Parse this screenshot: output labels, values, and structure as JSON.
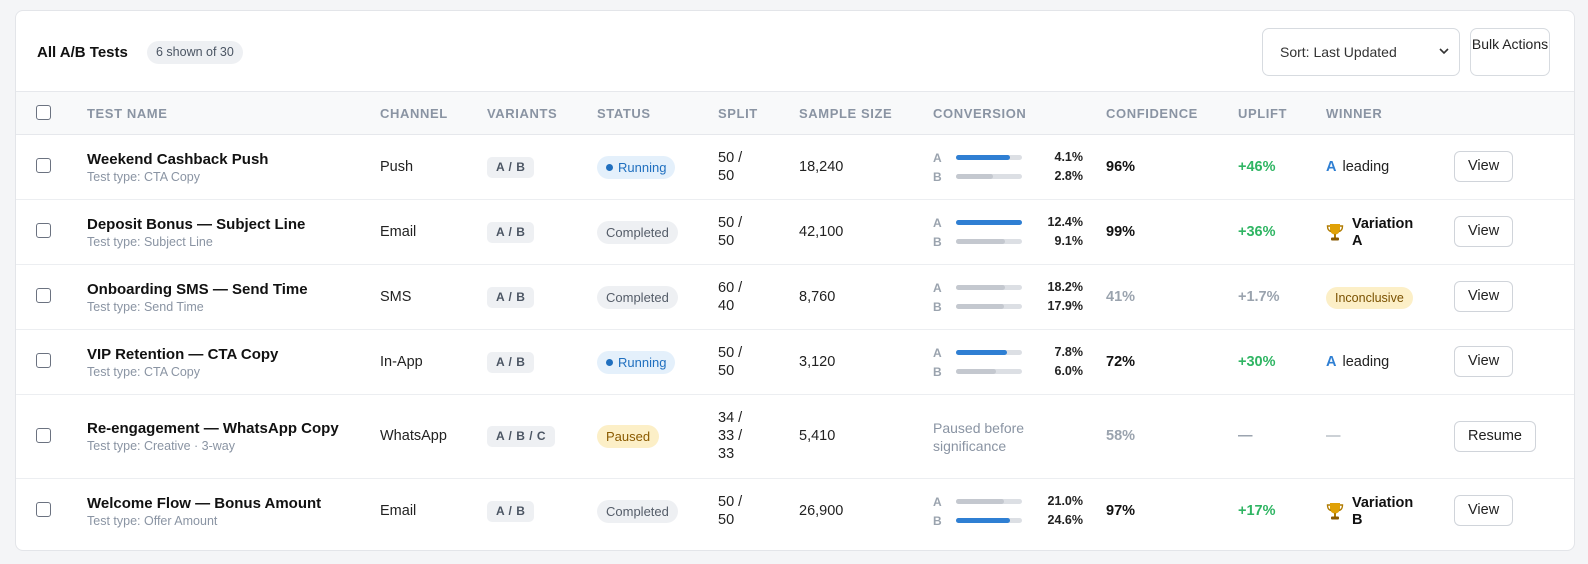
{
  "toolbar": {
    "title": "All A/B Tests",
    "count": "6 shown of 30",
    "sort": "Sort: Last Updated",
    "bulk_actions": "Bulk Actions"
  },
  "columns": [
    "TEST NAME",
    "CHANNEL",
    "VARIANTS",
    "STATUS",
    "SPLIT",
    "SAMPLE SIZE",
    "CONVERSION",
    "CONFIDENCE",
    "UPLIFT",
    "WINNER"
  ],
  "colors": {
    "accent_blue": "#2f7fd3",
    "uplift_green": "#2fb563",
    "paused_bg": "#fcefc7",
    "running_bg": "#e4f0fb"
  },
  "rows": [
    {
      "name": "Weekend Cashback Push",
      "type": "Test type: CTA Copy",
      "channel": "Push",
      "variants": "A / B",
      "status": "Running",
      "split": [
        "50 /",
        "50"
      ],
      "sample": "18,240",
      "conversion": [
        {
          "label": "A",
          "value": "4.1%",
          "fill": 0.82,
          "color": "blue"
        },
        {
          "label": "B",
          "value": "2.8%",
          "fill": 0.56,
          "color": "gray"
        }
      ],
      "confidence": "96%",
      "uplift": "+46%",
      "winner_mark": "A",
      "winner": "leading",
      "action": "View"
    },
    {
      "name": "Deposit Bonus — Subject Line",
      "type": "Test type: Subject Line",
      "channel": "Email",
      "variants": "A / B",
      "status": "Completed",
      "split": [
        "50 /",
        "50"
      ],
      "sample": "42,100",
      "conversion": [
        {
          "label": "A",
          "value": "12.4%",
          "fill": 1.0,
          "color": "blue"
        },
        {
          "label": "B",
          "value": "9.1%",
          "fill": 0.74,
          "color": "gray"
        }
      ],
      "confidence": "99%",
      "uplift": "+36%",
      "winner_icon": "trophy-icon",
      "winner_lines": [
        "Variation",
        "A"
      ],
      "action": "View"
    },
    {
      "name": "Onboarding SMS — Send Time",
      "type": "Test type: Send Time",
      "channel": "SMS",
      "variants": "A / B",
      "status": "Completed",
      "split": [
        "60 /",
        "40"
      ],
      "sample": "8,760",
      "conversion": [
        {
          "label": "A",
          "value": "18.2%",
          "fill": 0.74,
          "color": "gray"
        },
        {
          "label": "B",
          "value": "17.9%",
          "fill": 0.73,
          "color": "gray"
        }
      ],
      "confidence": "41%",
      "uplift": "+1.7%",
      "winner_badge": "Inconclusive",
      "action": "View"
    },
    {
      "name": "VIP Retention — CTA Copy",
      "type": "Test type: CTA Copy",
      "channel": "In-App",
      "variants": "A / B",
      "status": "Running",
      "split": [
        "50 /",
        "50"
      ],
      "sample": "3,120",
      "conversion": [
        {
          "label": "A",
          "value": "7.8%",
          "fill": 0.78,
          "color": "blue"
        },
        {
          "label": "B",
          "value": "6.0%",
          "fill": 0.6,
          "color": "gray"
        }
      ],
      "confidence": "72%",
      "uplift": "+30%",
      "winner_mark": "A",
      "winner": "leading",
      "action": "View"
    },
    {
      "name": "Re-engagement — WhatsApp Copy",
      "type": "Test type: Creative · 3-way",
      "channel": "WhatsApp",
      "variants": "A / B / C",
      "status": "Paused",
      "split": [
        "34 /",
        "33 /",
        "33"
      ],
      "sample": "5,410",
      "conversion_note": "Paused before significance",
      "confidence": "58%",
      "uplift": "—",
      "winner": "—",
      "action": "Resume"
    },
    {
      "name": "Welcome Flow — Bonus Amount",
      "type": "Test type: Offer Amount",
      "channel": "Email",
      "variants": "A / B",
      "status": "Completed",
      "split": [
        "50 /",
        "50"
      ],
      "sample": "26,900",
      "conversion": [
        {
          "label": "A",
          "value": "21.0%",
          "fill": 0.72,
          "color": "gray"
        },
        {
          "label": "B",
          "value": "24.6%",
          "fill": 0.82,
          "color": "blue"
        }
      ],
      "confidence": "97%",
      "uplift": "+17%",
      "winner_icon": "trophy-icon",
      "winner_lines": [
        "Variation",
        "B"
      ],
      "action": "View"
    }
  ]
}
